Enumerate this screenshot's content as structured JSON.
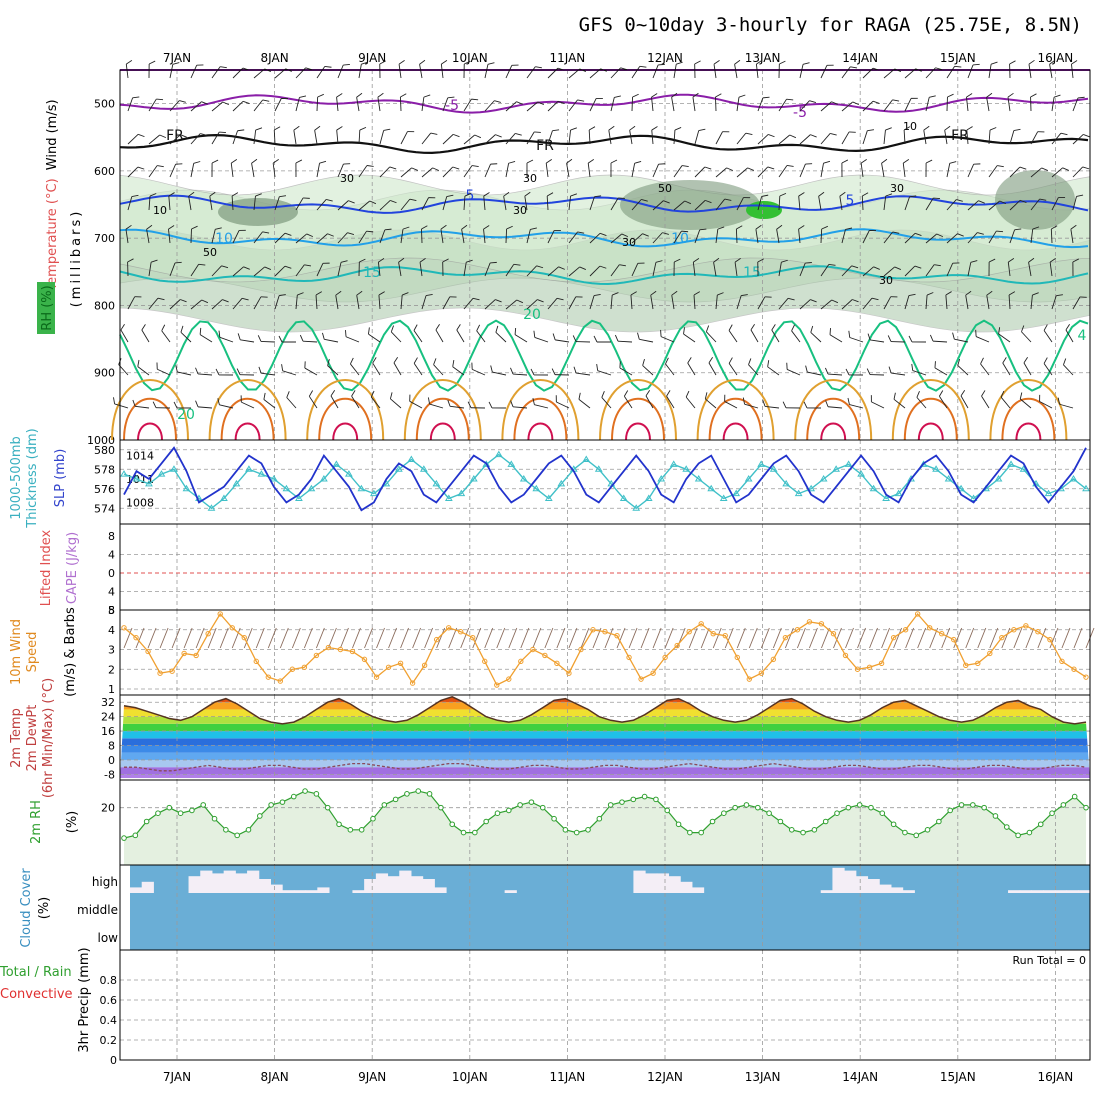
{
  "title": "GFS 0~10day 3-hourly for RAGA (25.75E, 8.5N)",
  "dates": [
    "7JAN",
    "8JAN",
    "9JAN",
    "10JAN",
    "11JAN",
    "12JAN",
    "13JAN",
    "14JAN",
    "15JAN",
    "16JAN"
  ],
  "run_total_label": "Run Total = 0",
  "colors": {
    "rh_green": "#cfe8cc",
    "temp_purple": "#8a1ea8",
    "temp_black": "#111111",
    "temp_blue": "#2244dd",
    "temp_lightblue": "#22a0e8",
    "temp_teal": "#20b8b8",
    "temp_green": "#18c080",
    "slp": "#2233cc",
    "thickness": "#40c0c8",
    "wind10m": "#f0a030",
    "dewpoint": "#a040a0",
    "rh2m": "#30a030",
    "cloud_blue": "#6aaed6",
    "cloud_high": "#f4eef6"
  },
  "labels": {
    "wind_ms": "Wind (m/s)",
    "temperature": "Temperature (°C)",
    "rh_pct": "RH (%)",
    "millibars": "(millibars)",
    "thickness": "1000-500mb",
    "thickness2": "Thickness (dm)",
    "slp": "SLP (mb)",
    "lifted_index": "Lifted Index",
    "cape": "CAPE (J/kg)",
    "wind10m_a": "10m Wind",
    "wind10m_b": "Speed",
    "wind10m_c": "(m/s) & Barbs",
    "temp2m_a": "2m Temp",
    "temp2m_b": "2m DewPt",
    "temp2m_c": "(6hr Min/Max) (°C)",
    "rh2m": "2m RH",
    "rh2m_unit": "(%)",
    "cloud": "Cloud Cover",
    "cloud_unit": "(%)",
    "precip_a": "Total / Rain",
    "precip_b": "Convective",
    "precip_c": "3hr Precip (mm)"
  },
  "contour_labels": {
    "temps": [
      "-5",
      "-5",
      "FR",
      "FR",
      "FR",
      "5",
      "5",
      "10",
      "10",
      "15",
      "15",
      "20",
      "20",
      "4"
    ],
    "rh": [
      "10",
      "30",
      "30",
      "50",
      "30",
      "30",
      "50",
      "30",
      "10",
      "30"
    ]
  },
  "chart_data": [
    {
      "type": "heatmap",
      "name": "pressure-level cross section",
      "x": [
        "7JAN",
        "8JAN",
        "9JAN",
        "10JAN",
        "11JAN",
        "12JAN",
        "13JAN",
        "14JAN",
        "15JAN",
        "16JAN"
      ],
      "ylim": [
        1000,
        450
      ],
      "y_ticks": [
        "500",
        "600",
        "700",
        "800",
        "900",
        "1000"
      ],
      "isotherms": [
        {
          "label": "-5",
          "pressure": 500
        },
        {
          "label": "FR",
          "pressure": 560
        },
        {
          "label": "5",
          "pressure": 650
        },
        {
          "label": "10",
          "pressure": 700
        },
        {
          "label": "15",
          "pressure": 755
        },
        {
          "label": "20",
          "pressure": 830
        }
      ]
    },
    {
      "type": "line",
      "name": "slp-thickness",
      "x_ticks": [
        "7JAN",
        "8JAN",
        "9JAN",
        "10JAN",
        "11JAN",
        "12JAN",
        "13JAN",
        "14JAN",
        "15JAN",
        "16JAN"
      ],
      "left_ticks": [
        "574",
        "576",
        "578",
        "580"
      ],
      "right_ticks": [
        "1008",
        "1011",
        "1014"
      ],
      "series": [
        {
          "name": "SLP (mb)",
          "values": [
            1009,
            1012,
            1011,
            1013,
            1015,
            1012,
            1008,
            1009,
            1010,
            1012,
            1014,
            1013,
            1010,
            1008,
            1009,
            1011,
            1014,
            1012,
            1010,
            1007,
            1008,
            1011,
            1013,
            1012,
            1009,
            1008,
            1010,
            1012,
            1014,
            1013,
            1010,
            1008,
            1009,
            1011,
            1013,
            1014,
            1012,
            1009,
            1008,
            1010,
            1012,
            1014,
            1012,
            1009,
            1008,
            1011,
            1013,
            1014,
            1011,
            1008,
            1009,
            1011,
            1013,
            1014,
            1012,
            1009,
            1008,
            1010,
            1012,
            1014,
            1012,
            1009,
            1008,
            1011,
            1013,
            1014,
            1012,
            1009,
            1008,
            1010,
            1012,
            1014,
            1013,
            1010,
            1008,
            1010,
            1012,
            1015
          ]
        },
        {
          "name": "Thickness (dm)",
          "values": [
            577.5,
            577,
            576.5,
            577.5,
            578,
            576,
            575,
            574,
            575,
            576.5,
            578,
            577.5,
            577,
            576,
            575,
            576,
            577,
            578.5,
            577.5,
            576,
            575.5,
            576.5,
            578,
            579,
            578,
            576.5,
            575,
            575.5,
            577,
            578.5,
            579.5,
            578.5,
            577,
            576,
            575,
            576.5,
            578,
            579,
            578,
            576.5,
            575,
            574,
            575,
            577,
            578.5,
            578,
            577,
            576,
            575,
            575.5,
            577,
            578.5,
            578,
            576.5,
            575.5,
            576,
            577,
            578,
            578.5,
            577.5,
            576,
            575,
            575.5,
            577,
            578.5,
            578,
            577,
            576,
            575,
            576,
            577,
            578.5,
            578,
            576.5,
            575.5,
            576,
            577,
            576
          ]
        }
      ]
    },
    {
      "type": "line",
      "name": "lifted-index-cape",
      "left_ticks": [
        "-8",
        "-4",
        "0",
        "4",
        "8"
      ],
      "series": []
    },
    {
      "type": "line",
      "name": "10m-wind",
      "left_ticks": [
        "1",
        "2",
        "3",
        "4",
        "5"
      ],
      "ylim": [
        1,
        5
      ],
      "series": [
        {
          "name": "10m Wind Speed (m/s)",
          "values": [
            4.1,
            3.6,
            2.9,
            1.8,
            1.9,
            2.8,
            2.7,
            3.8,
            4.8,
            4.1,
            3.6,
            2.4,
            1.6,
            1.4,
            2.0,
            2.1,
            2.7,
            3.1,
            3.0,
            2.9,
            2.5,
            1.6,
            2.1,
            2.3,
            1.3,
            2.2,
            3.5,
            4.1,
            3.9,
            3.6,
            2.4,
            1.2,
            1.5,
            2.4,
            3.0,
            2.7,
            2.3,
            1.8,
            3.0,
            4.0,
            3.9,
            3.7,
            2.6,
            1.5,
            1.8,
            2.6,
            3.2,
            3.9,
            4.3,
            3.8,
            3.7,
            2.6,
            1.5,
            1.8,
            2.5,
            3.6,
            4.0,
            4.4,
            4.3,
            3.8,
            2.7,
            2.0,
            2.1,
            2.3,
            3.6,
            4.0,
            4.8,
            4.1,
            3.8,
            3.5,
            2.2,
            2.3,
            2.8,
            3.6,
            4.0,
            4.2,
            3.9,
            3.5,
            2.4,
            2.0,
            1.6
          ]
        }
      ]
    },
    {
      "type": "area",
      "name": "2m-temperature",
      "left_ticks": [
        "-8",
        "0",
        "8",
        "16",
        "24",
        "32"
      ],
      "ylim": [
        -8,
        36
      ],
      "series": [
        {
          "name": "2m Temp",
          "values": [
            30,
            29,
            27,
            25,
            23,
            22,
            24,
            28,
            32,
            34,
            31,
            27,
            23,
            21,
            20,
            21,
            24,
            28,
            32,
            34,
            31,
            27,
            24,
            22,
            21,
            22,
            25,
            29,
            33,
            35,
            32,
            28,
            24,
            22,
            21,
            22,
            25,
            29,
            33,
            34,
            31,
            28,
            24,
            22,
            21,
            22,
            25,
            29,
            33,
            34,
            31,
            27,
            24,
            22,
            21,
            22,
            25,
            29,
            33,
            34,
            31,
            27,
            24,
            22,
            21,
            22,
            25,
            29,
            32,
            33,
            30,
            27,
            24,
            22,
            21,
            22,
            25,
            29,
            32,
            33,
            30,
            28,
            24,
            21,
            20,
            21
          ]
        },
        {
          "name": "2m DewPt",
          "values": [
            -4,
            -4,
            -5,
            -6,
            -6,
            -5,
            -4,
            -3,
            -4,
            -5,
            -5,
            -4,
            -3,
            -3,
            -4,
            -5,
            -5,
            -4,
            -3,
            -2,
            -2,
            -3,
            -4,
            -5,
            -5,
            -4,
            -3,
            -2,
            -2,
            -3,
            -4,
            -5,
            -5,
            -4,
            -3,
            -3,
            -4,
            -5,
            -5,
            -4,
            -3,
            -3,
            -4,
            -5,
            -5,
            -4,
            -3,
            -2,
            -3,
            -4,
            -5,
            -5,
            -4,
            -3,
            -2,
            -3,
            -4,
            -5,
            -5,
            -4,
            -3,
            -3,
            -4,
            -5,
            -5,
            -4,
            -3,
            -3,
            -4,
            -5,
            -5,
            -4,
            -3,
            -3,
            -4,
            -5,
            -5,
            -4,
            -3,
            -3,
            -4
          ]
        }
      ]
    },
    {
      "type": "area",
      "name": "2m-rh",
      "left_ticks": [
        "20"
      ],
      "series": [
        {
          "name": "2m RH (%)",
          "values": [
            9,
            10,
            15,
            18,
            20,
            18,
            19,
            21,
            16,
            12,
            10,
            12,
            17,
            21,
            22,
            24,
            26,
            25,
            20,
            14,
            12,
            12,
            16,
            21,
            23,
            25,
            26,
            25,
            20,
            14,
            11,
            11,
            15,
            18,
            19,
            21,
            22,
            20,
            16,
            12,
            11,
            12,
            16,
            21,
            22,
            23,
            24,
            23,
            19,
            14,
            11,
            11,
            15,
            18,
            20,
            21,
            20,
            18,
            15,
            12,
            11,
            12,
            15,
            18,
            20,
            21,
            20,
            18,
            14,
            11,
            10,
            12,
            15,
            19,
            21,
            21,
            20,
            17,
            13,
            10,
            11,
            14,
            18,
            21,
            24,
            20
          ]
        }
      ]
    },
    {
      "type": "bar",
      "name": "cloud-cover",
      "left_ticks": [
        "high",
        "middle",
        "low"
      ],
      "series": [
        {
          "name": "High cloud",
          "values": [
            20,
            40,
            0,
            0,
            0,
            60,
            80,
            70,
            80,
            70,
            80,
            50,
            30,
            10,
            10,
            10,
            20,
            0,
            0,
            10,
            50,
            70,
            60,
            80,
            60,
            50,
            20,
            0,
            0,
            0,
            0,
            0,
            10,
            0,
            0,
            0,
            0,
            0,
            0,
            0,
            0,
            0,
            0,
            80,
            70,
            70,
            60,
            40,
            20,
            0,
            0,
            0,
            0,
            0,
            0,
            0,
            0,
            0,
            0,
            10,
            90,
            80,
            60,
            50,
            30,
            20,
            10,
            0,
            0,
            0,
            0,
            0,
            0,
            0,
            0,
            10,
            10,
            10,
            10,
            10,
            10,
            10
          ]
        }
      ]
    },
    {
      "type": "bar",
      "name": "3hr-precip",
      "left_ticks": [
        "0",
        "0.2",
        "0.4",
        "0.6",
        "0.8"
      ],
      "ylim": [
        0,
        0.9
      ],
      "series": []
    }
  ]
}
